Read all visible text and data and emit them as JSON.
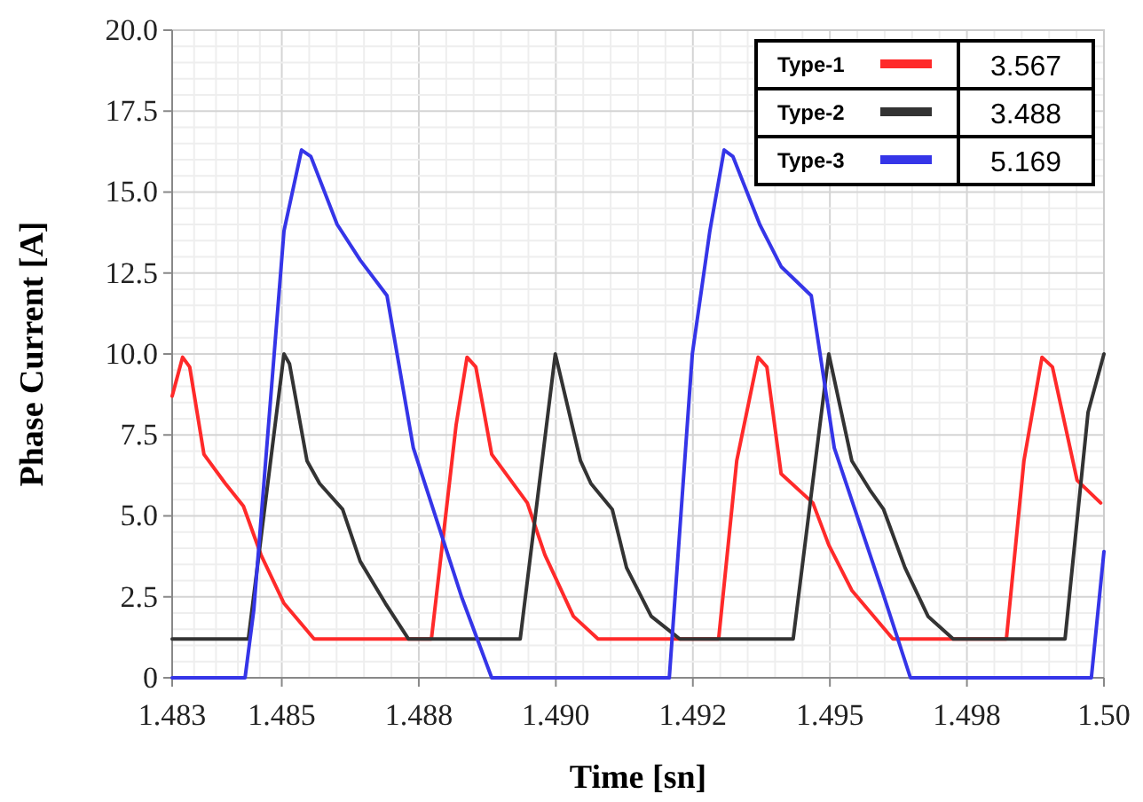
{
  "chart_data": {
    "type": "line",
    "xlabel": "Time [sn]",
    "ylabel": "Phase Current [A]",
    "xlim": [
      1.483,
      1.5
    ],
    "xticks": [
      {
        "value": 1.483,
        "label": "1.483"
      },
      {
        "value": 1.485,
        "label": "1.485"
      },
      {
        "value": 1.4875,
        "label": "1.488"
      },
      {
        "value": 1.49,
        "label": "1.490"
      },
      {
        "value": 1.4925,
        "label": "1.492"
      },
      {
        "value": 1.495,
        "label": "1.495"
      },
      {
        "value": 1.4975,
        "label": "1.498"
      },
      {
        "value": 1.5,
        "label": "1.50"
      }
    ],
    "ylim": [
      0,
      20
    ],
    "yticks": [
      0,
      2.5,
      {
        "value": 5,
        "label": "5.0"
      },
      7.5,
      {
        "value": 10,
        "label": "10.0"
      },
      12.5,
      {
        "value": 15,
        "label": "15.0"
      },
      17.5,
      {
        "value": 20,
        "label": "20.0"
      }
    ],
    "grid": true,
    "legend": "top right",
    "line_style": "solid",
    "annotations": [
      "3.567",
      "3.488",
      "5.169"
    ],
    "series": [
      {
        "name": "Type-1",
        "color": "#ff2a2a",
        "x": [
          1.483,
          1.48319,
          1.48332,
          1.48358,
          1.48397,
          1.4843,
          1.48462,
          1.48504,
          1.48559,
          1.48773,
          1.48818,
          1.48838,
          1.48854,
          1.48883,
          1.48948,
          1.4898,
          1.49032,
          1.49077,
          1.49297,
          1.4933,
          1.49369,
          1.49385,
          1.49411,
          1.49469,
          1.49498,
          1.4954,
          1.49615,
          1.49822,
          1.49854,
          1.49887,
          1.49906,
          1.49951,
          1.49994
        ],
        "values": [
          8.7,
          9.9,
          9.6,
          6.9,
          6.0,
          5.3,
          3.8,
          2.3,
          1.2,
          1.2,
          7.8,
          9.9,
          9.6,
          6.9,
          5.4,
          3.8,
          1.9,
          1.2,
          1.2,
          6.7,
          9.9,
          9.6,
          6.3,
          5.4,
          4.1,
          2.7,
          1.2,
          1.2,
          6.7,
          9.9,
          9.6,
          6.1,
          5.4
        ]
      },
      {
        "name": "Type-2",
        "color": "#333333",
        "x": [
          1.483,
          1.48439,
          1.48504,
          1.48514,
          1.48546,
          1.48569,
          1.48611,
          1.48643,
          1.48689,
          1.48731,
          1.48935,
          1.48999,
          1.49045,
          1.49064,
          1.49103,
          1.49129,
          1.49174,
          1.49226,
          1.49433,
          1.49498,
          1.4954,
          1.49573,
          1.49598,
          1.49637,
          1.49679,
          1.49725,
          1.49929,
          1.49971,
          1.5
        ],
        "values": [
          1.2,
          1.2,
          10.0,
          9.7,
          6.7,
          6.0,
          5.2,
          3.6,
          2.3,
          1.2,
          1.2,
          10.0,
          6.7,
          6.0,
          5.2,
          3.4,
          1.9,
          1.2,
          1.2,
          10.0,
          6.7,
          5.8,
          5.2,
          3.4,
          1.9,
          1.2,
          1.2,
          8.2,
          10.0
        ]
      },
      {
        "name": "Type-3",
        "color": "#3535e8",
        "x": [
          1.483,
          1.48433,
          1.48449,
          1.48504,
          1.48536,
          1.48553,
          1.48601,
          1.48643,
          1.48692,
          1.4874,
          1.48828,
          1.48883,
          1.49207,
          1.49249,
          1.49281,
          1.49307,
          1.49323,
          1.49372,
          1.49411,
          1.49466,
          1.49508,
          1.49595,
          1.49647,
          1.49977,
          1.5
        ],
        "values": [
          0,
          0,
          2.1,
          13.8,
          16.3,
          16.1,
          14.0,
          12.9,
          11.8,
          7.1,
          2.5,
          0,
          0,
          10.0,
          13.8,
          16.3,
          16.1,
          14.0,
          12.7,
          11.8,
          7.1,
          2.7,
          0,
          0,
          3.9
        ]
      }
    ]
  }
}
